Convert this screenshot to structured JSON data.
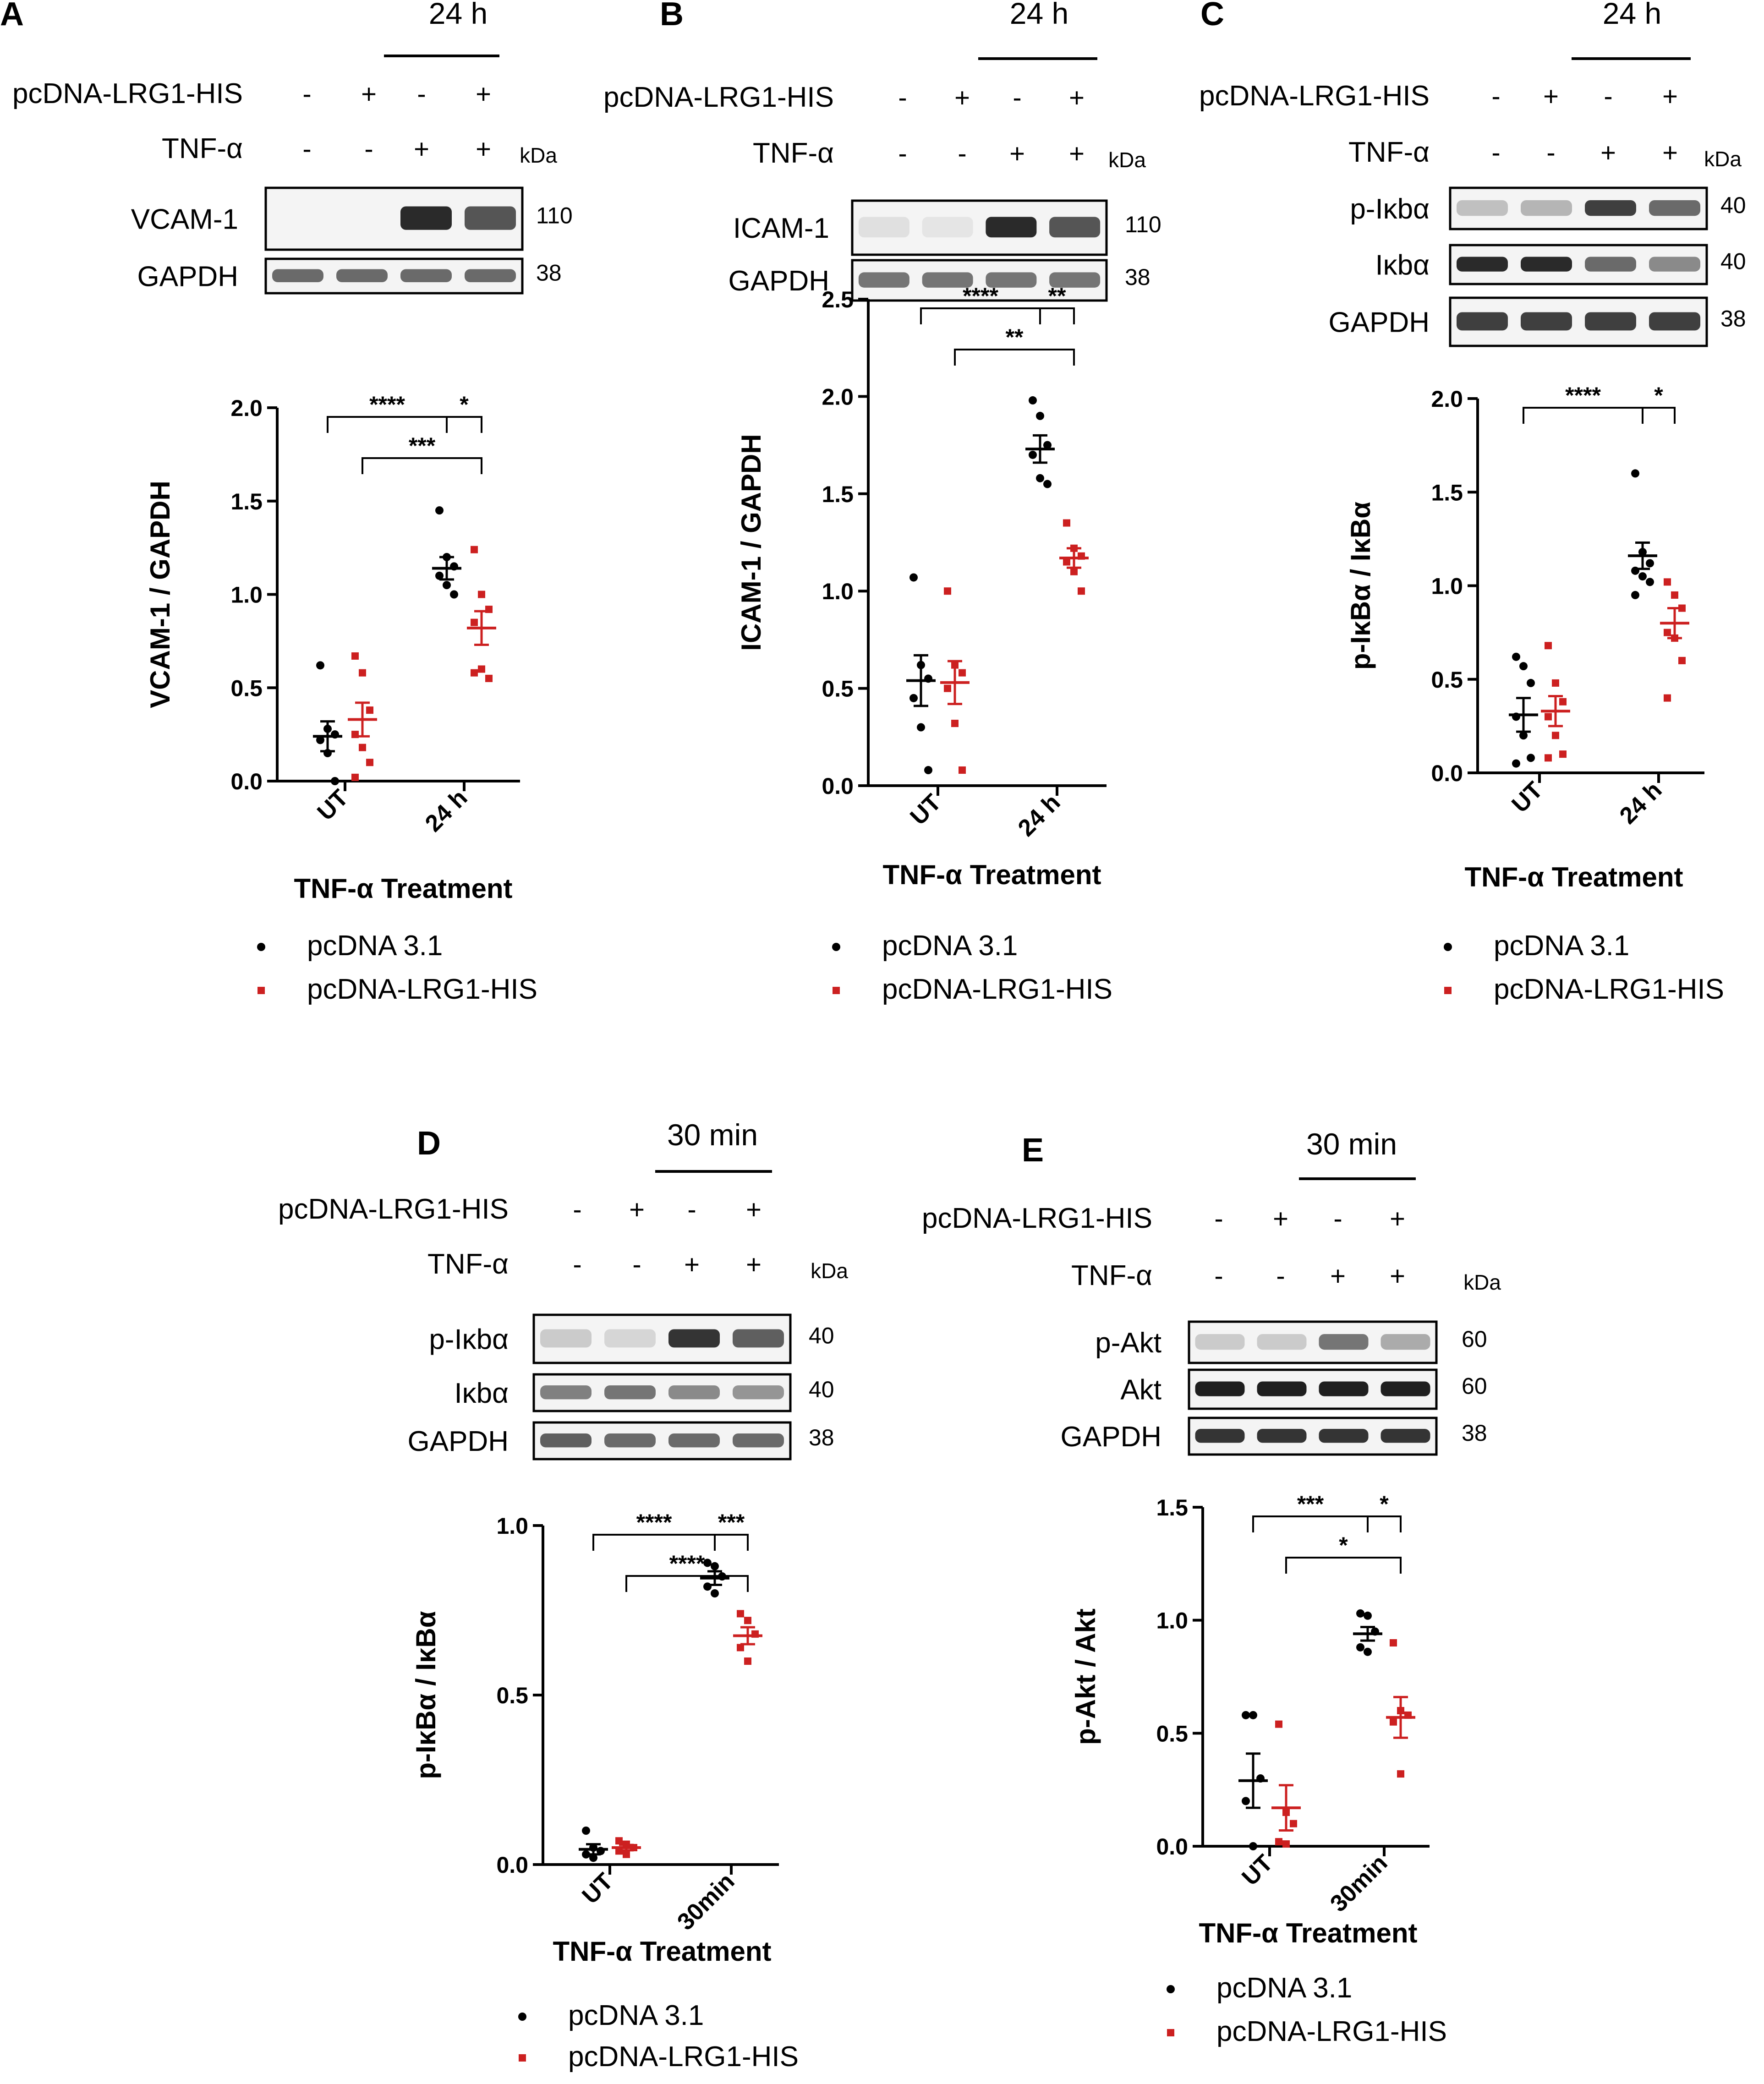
{
  "colors": {
    "ctrl": "#000000",
    "lrg": "#cc2020",
    "band": "#2a2a2a"
  },
  "legend": {
    "ctrl": "pcDNA 3.1",
    "lrg": "pcDNA-LRG1-HIS"
  },
  "blot_labels": {
    "lrg_row": "pcDNA-LRG1-HIS",
    "tnf_row": "TNF-α",
    "kda": "kDa"
  },
  "xlabel": "TNF-α Treatment",
  "panels": [
    {
      "letter": "A",
      "time": "24 h",
      "lrg_signs": [
        "-",
        "+",
        "-",
        "+"
      ],
      "tnf_signs": [
        "-",
        "-",
        "+",
        "+"
      ],
      "blots": [
        {
          "label": "VCAM-1",
          "kda": "110",
          "intensity": [
            0,
            0,
            0.9,
            0.7
          ]
        },
        {
          "label": "GAPDH",
          "kda": "38",
          "intensity": [
            0.6,
            0.6,
            0.6,
            0.6
          ]
        }
      ]
    },
    {
      "letter": "B",
      "time": "24 h",
      "lrg_signs": [
        "-",
        "+",
        "-",
        "+"
      ],
      "tnf_signs": [
        "-",
        "-",
        "+",
        "+"
      ],
      "blots": [
        {
          "label": "ICAM-1",
          "kda": "110",
          "intensity": [
            0.05,
            0.03,
            0.9,
            0.7
          ]
        },
        {
          "label": "GAPDH",
          "kda": "38",
          "intensity": [
            0.55,
            0.55,
            0.55,
            0.55
          ]
        }
      ]
    },
    {
      "letter": "C",
      "time": "24 h",
      "lrg_signs": [
        "-",
        "+",
        "-",
        "+"
      ],
      "tnf_signs": [
        "-",
        "-",
        "+",
        "+"
      ],
      "blots": [
        {
          "label": "p-Iκbα",
          "kda": "40",
          "intensity": [
            0.2,
            0.25,
            0.8,
            0.6
          ]
        },
        {
          "label": "Iκbα",
          "kda": "40",
          "intensity": [
            0.9,
            0.9,
            0.6,
            0.45
          ]
        },
        {
          "label": "GAPDH",
          "kda": "38",
          "intensity": [
            0.8,
            0.8,
            0.8,
            0.8
          ]
        }
      ]
    },
    {
      "letter": "D",
      "time": "30 min",
      "lrg_signs": [
        "-",
        "+",
        "-",
        "+"
      ],
      "tnf_signs": [
        "-",
        "-",
        "+",
        "+"
      ],
      "blots": [
        {
          "label": "p-Iκbα",
          "kda": "40",
          "intensity": [
            0.15,
            0.1,
            0.85,
            0.65
          ]
        },
        {
          "label": "Iκbα",
          "kda": "40",
          "intensity": [
            0.5,
            0.55,
            0.45,
            0.4
          ]
        },
        {
          "label": "GAPDH",
          "kda": "38",
          "intensity": [
            0.65,
            0.6,
            0.6,
            0.6
          ]
        }
      ]
    },
    {
      "letter": "E",
      "time": "30 min",
      "lrg_signs": [
        "-",
        "+",
        "-",
        "+"
      ],
      "tnf_signs": [
        "-",
        "-",
        "+",
        "+"
      ],
      "blots": [
        {
          "label": "p-Akt",
          "kda": "60",
          "intensity": [
            0.15,
            0.15,
            0.55,
            0.3
          ]
        },
        {
          "label": "Akt",
          "kda": "60",
          "intensity": [
            0.95,
            0.95,
            0.95,
            0.95
          ]
        },
        {
          "label": "GAPDH",
          "kda": "38",
          "intensity": [
            0.85,
            0.85,
            0.85,
            0.85
          ]
        }
      ]
    }
  ],
  "chart_data": [
    {
      "type": "scatter",
      "panel": "A",
      "ylabel": "VCAM-1 / GAPDH",
      "xlabel": "TNF-α Treatment",
      "categories": [
        "UT",
        "24 h"
      ],
      "ylim": [
        0,
        2.0
      ],
      "yticks": [
        "0.0",
        "0.5",
        "1.0",
        "1.5",
        "2.0"
      ],
      "series": [
        {
          "name": "pcDNA 3.1",
          "points": [
            [
              0.62,
              0.28,
              0.25,
              0.22,
              0.15,
              0.0
            ],
            [
              1.45,
              1.2,
              1.15,
              1.1,
              1.05,
              1.0
            ]
          ],
          "mean": [
            0.24,
            1.14
          ],
          "sem": [
            0.08,
            0.06
          ]
        },
        {
          "name": "pcDNA-LRG1-HIS",
          "points": [
            [
              0.67,
              0.58,
              0.38,
              0.25,
              0.18,
              0.1,
              0.02
            ],
            [
              1.24,
              1.0,
              0.92,
              0.85,
              0.6,
              0.55,
              0.58
            ]
          ],
          "mean": [
            0.33,
            0.82
          ],
          "sem": [
            0.09,
            0.09
          ]
        }
      ],
      "significance": [
        {
          "from": "UT:pcDNA 3.1",
          "to": "24 h:pcDNA 3.1",
          "label": "****"
        },
        {
          "from": "24 h:pcDNA 3.1",
          "to": "24 h:pcDNA-LRG1-HIS",
          "label": "*"
        },
        {
          "from": "UT:pcDNA-LRG1-HIS",
          "to": "24 h:pcDNA-LRG1-HIS",
          "label": "***"
        }
      ]
    },
    {
      "type": "scatter",
      "panel": "B",
      "ylabel": "ICAM-1 / GAPDH",
      "xlabel": "TNF-α Treatment",
      "categories": [
        "UT",
        "24 h"
      ],
      "ylim": [
        0,
        2.5
      ],
      "yticks": [
        "0.0",
        "0.5",
        "1.0",
        "1.5",
        "2.0",
        "2.5"
      ],
      "series": [
        {
          "name": "pcDNA 3.1",
          "points": [
            [
              1.07,
              0.62,
              0.55,
              0.45,
              0.3,
              0.08
            ],
            [
              1.98,
              1.9,
              1.75,
              1.7,
              1.58,
              1.55
            ]
          ],
          "mean": [
            0.54,
            1.73
          ],
          "sem": [
            0.13,
            0.07
          ]
        },
        {
          "name": "pcDNA-LRG1-HIS",
          "points": [
            [
              1.0,
              0.62,
              0.58,
              0.5,
              0.32,
              0.08
            ],
            [
              1.35,
              1.22,
              1.18,
              1.15,
              1.1,
              1.0
            ]
          ],
          "mean": [
            0.53,
            1.17
          ],
          "sem": [
            0.11,
            0.05
          ]
        }
      ],
      "significance": [
        {
          "from": "UT:pcDNA 3.1",
          "to": "24 h:pcDNA 3.1",
          "label": "****"
        },
        {
          "from": "24 h:pcDNA 3.1",
          "to": "24 h:pcDNA-LRG1-HIS",
          "label": "**"
        },
        {
          "from": "UT:pcDNA-LRG1-HIS",
          "to": "24 h:pcDNA-LRG1-HIS",
          "label": "**"
        }
      ]
    },
    {
      "type": "scatter",
      "panel": "C",
      "ylabel": "p-IκBα / IκBα",
      "xlabel": "TNF-α Treatment",
      "categories": [
        "UT",
        "24 h"
      ],
      "ylim": [
        0,
        2.0
      ],
      "yticks": [
        "0.0",
        "0.5",
        "1.0",
        "1.5",
        "2.0"
      ],
      "series": [
        {
          "name": "pcDNA 3.1",
          "points": [
            [
              0.62,
              0.57,
              0.48,
              0.3,
              0.2,
              0.08,
              0.05
            ],
            [
              1.6,
              1.18,
              1.12,
              1.08,
              1.05,
              1.02,
              0.95
            ]
          ],
          "mean": [
            0.31,
            1.16
          ],
          "sem": [
            0.09,
            0.07
          ]
        },
        {
          "name": "pcDNA-LRG1-HIS",
          "points": [
            [
              0.68,
              0.48,
              0.38,
              0.3,
              0.2,
              0.1,
              0.08
            ],
            [
              1.02,
              0.95,
              0.88,
              0.75,
              0.72,
              0.6,
              0.4
            ]
          ],
          "mean": [
            0.33,
            0.8
          ],
          "sem": [
            0.08,
            0.08
          ]
        }
      ],
      "significance": [
        {
          "from": "UT:pcDNA 3.1",
          "to": "24 h:pcDNA 3.1",
          "label": "****"
        },
        {
          "from": "24 h:pcDNA 3.1",
          "to": "24 h:pcDNA-LRG1-HIS",
          "label": "*"
        }
      ]
    },
    {
      "type": "scatter",
      "panel": "D",
      "ylabel": "p-IκBα / IκBα",
      "xlabel": "TNF-α Treatment",
      "categories": [
        "UT",
        "30min"
      ],
      "ylim": [
        0,
        1.0
      ],
      "yticks": [
        "0.0",
        "0.5",
        "1.0"
      ],
      "series": [
        {
          "name": "pcDNA 3.1",
          "points": [
            [
              0.1,
              0.05,
              0.04,
              0.03,
              0.02
            ],
            [
              0.89,
              0.88,
              0.85,
              0.82,
              0.8
            ]
          ],
          "mean": [
            0.045,
            0.845
          ],
          "sem": [
            0.015,
            0.02
          ]
        },
        {
          "name": "pcDNA-LRG1-HIS",
          "points": [
            [
              0.07,
              0.06,
              0.05,
              0.04,
              0.03
            ],
            [
              0.74,
              0.72,
              0.68,
              0.64,
              0.6
            ]
          ],
          "mean": [
            0.05,
            0.675
          ],
          "sem": [
            0.008,
            0.025
          ]
        }
      ],
      "significance": [
        {
          "from": "UT:pcDNA 3.1",
          "to": "30min:pcDNA 3.1",
          "label": "****"
        },
        {
          "from": "30min:pcDNA 3.1",
          "to": "30min:pcDNA-LRG1-HIS",
          "label": "***"
        },
        {
          "from": "UT:pcDNA-LRG1-HIS",
          "to": "30min:pcDNA-LRG1-HIS",
          "label": "****"
        }
      ]
    },
    {
      "type": "scatter",
      "panel": "E",
      "ylabel": "p-Akt / Akt",
      "xlabel": "TNF-α Treatment",
      "categories": [
        "UT",
        "30min"
      ],
      "ylim": [
        0,
        1.5
      ],
      "yticks": [
        "0.0",
        "0.5",
        "1.0",
        "1.5"
      ],
      "series": [
        {
          "name": "pcDNA 3.1",
          "points": [
            [
              0.58,
              0.58,
              0.3,
              0.2,
              0.0
            ],
            [
              1.03,
              1.02,
              0.95,
              0.88,
              0.86
            ]
          ],
          "mean": [
            0.29,
            0.94
          ],
          "sem": [
            0.12,
            0.03
          ]
        },
        {
          "name": "pcDNA-LRG1-HIS",
          "points": [
            [
              0.54,
              0.15,
              0.1,
              0.02,
              0.01
            ],
            [
              0.9,
              0.6,
              0.58,
              0.55,
              0.32
            ]
          ],
          "mean": [
            0.17,
            0.57
          ],
          "sem": [
            0.1,
            0.09
          ]
        }
      ],
      "significance": [
        {
          "from": "UT:pcDNA 3.1",
          "to": "30min:pcDNA 3.1",
          "label": "***"
        },
        {
          "from": "30min:pcDNA 3.1",
          "to": "30min:pcDNA-LRG1-HIS",
          "label": "*"
        },
        {
          "from": "UT:pcDNA-LRG1-HIS",
          "to": "30min:pcDNA-LRG1-HIS",
          "label": "*"
        }
      ]
    }
  ]
}
